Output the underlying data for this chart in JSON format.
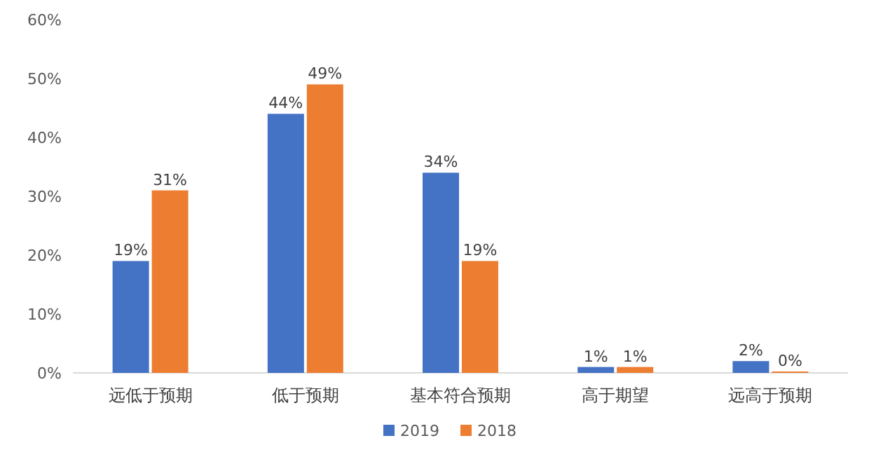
{
  "chart_data": {
    "type": "bar",
    "categories": [
      "远低于预期",
      "低于预期",
      "基本符合预期",
      "高于期望",
      "远高于预期"
    ],
    "series": [
      {
        "name": "2019",
        "color": "#4472c4",
        "values": [
          19,
          44,
          34,
          1,
          2
        ],
        "value_labels": [
          "19%",
          "44%",
          "34%",
          "1%",
          "2%"
        ]
      },
      {
        "name": "2018",
        "color": "#ed7d31",
        "values": [
          31,
          49,
          19,
          1,
          0
        ],
        "value_labels": [
          "31%",
          "49%",
          "19%",
          "1%",
          "0%"
        ]
      }
    ],
    "ylim": [
      0,
      60
    ],
    "yticks": [
      {
        "value": 0,
        "label": "0%"
      },
      {
        "value": 10,
        "label": "10%"
      },
      {
        "value": 20,
        "label": "20%"
      },
      {
        "value": 30,
        "label": "30%"
      },
      {
        "value": 40,
        "label": "40%"
      },
      {
        "value": 50,
        "label": "50%"
      },
      {
        "value": 60,
        "label": "60%"
      }
    ],
    "legend": "bottom"
  }
}
